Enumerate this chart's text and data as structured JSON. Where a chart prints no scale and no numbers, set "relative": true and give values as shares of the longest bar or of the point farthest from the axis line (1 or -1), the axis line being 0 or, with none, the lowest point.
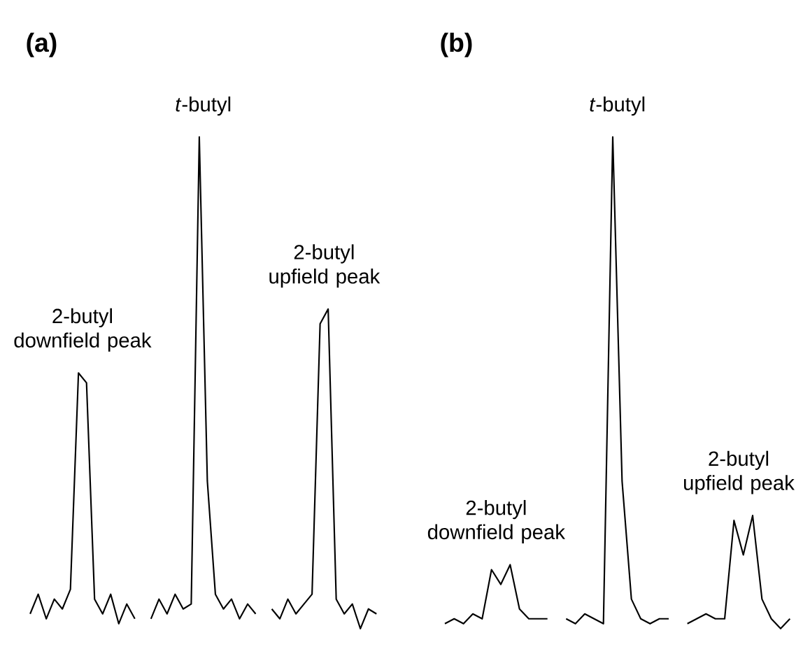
{
  "chart_data": [
    {
      "type": "line",
      "title": "(a)",
      "relative": true,
      "categories": [
        null,
        null,
        null,
        null,
        null,
        null,
        null,
        null,
        null,
        null,
        null,
        null,
        null,
        null,
        null,
        null,
        null,
        null,
        null,
        null,
        null,
        null,
        null,
        null,
        null,
        null,
        null,
        null,
        null,
        null,
        null,
        null,
        null,
        null,
        null,
        null,
        null,
        null,
        null,
        null,
        null,
        null,
        null,
        null
      ],
      "series": [
        {
          "color": "#000000",
          "values": [
            0.03,
            0.07,
            0.02,
            0.06,
            0.04,
            0.08,
            0.52,
            0.5,
            0.06,
            0.03,
            0.07,
            0.01,
            0.05,
            0.02,
            null,
            null,
            null,
            null,
            null,
            null,
            null,
            null,
            null,
            null,
            null,
            null,
            null,
            null,
            null,
            null,
            null,
            null,
            null,
            null,
            null,
            null,
            null,
            null,
            null,
            null,
            null,
            null,
            null,
            null
          ]
        },
        {
          "color": "#000000",
          "values": [
            null,
            null,
            null,
            null,
            null,
            null,
            null,
            null,
            null,
            null,
            null,
            null,
            null,
            null,
            null,
            0.02,
            0.06,
            0.03,
            0.07,
            0.04,
            0.05,
            1.0,
            0.3,
            0.07,
            0.04,
            0.06,
            0.02,
            0.05,
            0.03,
            null,
            null,
            null,
            null,
            null,
            null,
            null,
            null,
            null,
            null,
            null,
            null,
            null,
            null,
            null
          ]
        },
        {
          "color": "#000000",
          "values": [
            null,
            null,
            null,
            null,
            null,
            null,
            null,
            null,
            null,
            null,
            null,
            null,
            null,
            null,
            null,
            null,
            null,
            null,
            null,
            null,
            null,
            null,
            null,
            null,
            null,
            null,
            null,
            null,
            null,
            null,
            0.04,
            0.02,
            0.06,
            0.03,
            0.05,
            0.07,
            0.62,
            0.65,
            0.06,
            0.03,
            0.05,
            0.0,
            0.04,
            0.03
          ]
        }
      ],
      "annotations": [
        "2-butyl downfield peak",
        "*t*-butyl",
        "2-butyl upfield peak"
      ]
    },
    {
      "type": "line",
      "title": "(b)",
      "relative": true,
      "categories": [
        null,
        null,
        null,
        null,
        null,
        null,
        null,
        null,
        null,
        null,
        null,
        null,
        null,
        null,
        null,
        null,
        null,
        null,
        null,
        null,
        null,
        null,
        null,
        null,
        null,
        null,
        null,
        null,
        null,
        null,
        null,
        null,
        null,
        null,
        null,
        null,
        null,
        null
      ],
      "series": [
        {
          "color": "#000000",
          "values": [
            0.01,
            0.02,
            0.01,
            0.03,
            0.02,
            0.12,
            0.09,
            0.13,
            0.04,
            0.02,
            0.02,
            0.02,
            null,
            null,
            null,
            null,
            null,
            null,
            null,
            null,
            null,
            null,
            null,
            null,
            null,
            null,
            null,
            null,
            null,
            null,
            null,
            null,
            null,
            null,
            null,
            null,
            null,
            null
          ]
        },
        {
          "color": "#000000",
          "values": [
            null,
            null,
            null,
            null,
            null,
            null,
            null,
            null,
            null,
            null,
            null,
            null,
            null,
            0.02,
            0.01,
            0.03,
            0.02,
            0.01,
            1.0,
            0.3,
            0.06,
            0.02,
            0.01,
            0.02,
            0.02,
            null,
            null,
            null,
            null,
            null,
            null,
            null,
            null,
            null,
            null,
            null,
            null,
            null
          ]
        },
        {
          "color": "#000000",
          "values": [
            null,
            null,
            null,
            null,
            null,
            null,
            null,
            null,
            null,
            null,
            null,
            null,
            null,
            null,
            null,
            null,
            null,
            null,
            null,
            null,
            null,
            null,
            null,
            null,
            null,
            null,
            0.01,
            0.02,
            0.03,
            0.02,
            0.02,
            0.22,
            0.15,
            0.23,
            0.06,
            0.02,
            0.0,
            0.02
          ]
        }
      ],
      "annotations": [
        "2-butyl downfield peak",
        "*t*-butyl",
        "2-butyl upfield peak"
      ]
    }
  ]
}
